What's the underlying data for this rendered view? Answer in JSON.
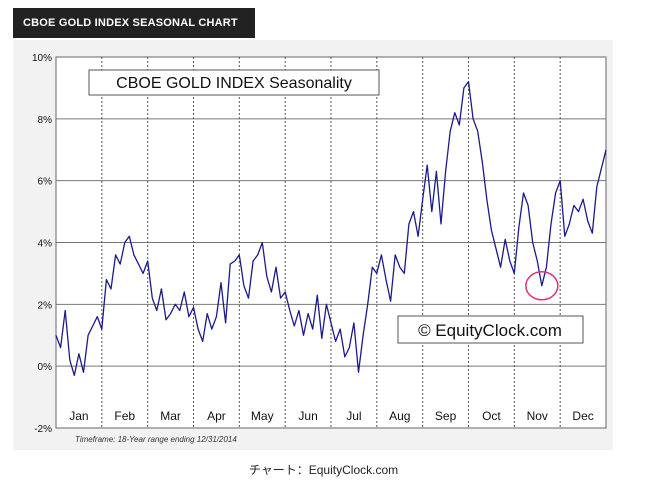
{
  "header": {
    "title": "CBOE GOLD INDEX SEASONAL CHART"
  },
  "caption": "チャート：EquityClock.com",
  "chart_data": {
    "type": "line",
    "title": "CBOE GOLD INDEX Seasonality",
    "watermark": "© EquityClock.com",
    "footnote": "Timeframe: 18-Year range ending 12/31/2014",
    "xlabel": "",
    "ylabel": "",
    "ylim": [
      -2,
      10
    ],
    "yticks": [
      "10%",
      "8%",
      "6%",
      "4%",
      "2%",
      "0%",
      "-2%"
    ],
    "ytick_values": [
      10,
      8,
      6,
      4,
      2,
      0,
      -2
    ],
    "months": [
      "Jan",
      "Feb",
      "Mar",
      "Apr",
      "May",
      "Jun",
      "Jul",
      "Aug",
      "Sep",
      "Oct",
      "Nov",
      "Dec"
    ],
    "grid": true,
    "line_color": "#1a1a8c",
    "highlight": {
      "month_position": 10.6,
      "value": 2.6,
      "color": "#e0307a"
    },
    "series": [
      {
        "x": [
          0.0,
          0.1,
          0.2,
          0.3,
          0.4,
          0.5,
          0.6,
          0.7,
          0.8,
          0.9,
          1.0,
          1.1,
          1.2,
          1.3,
          1.4,
          1.5,
          1.6,
          1.7,
          1.8,
          1.9,
          2.0,
          2.1,
          2.2,
          2.3,
          2.4,
          2.5,
          2.6,
          2.7,
          2.8,
          2.9,
          3.0,
          3.1,
          3.2,
          3.3,
          3.4,
          3.5,
          3.6,
          3.7,
          3.8,
          3.9,
          4.0,
          4.1,
          4.2,
          4.3,
          4.4,
          4.5,
          4.6,
          4.7,
          4.8,
          4.9,
          5.0,
          5.1,
          5.2,
          5.3,
          5.4,
          5.5,
          5.6,
          5.7,
          5.8,
          5.9,
          6.0,
          6.1,
          6.2,
          6.3,
          6.4,
          6.5,
          6.6,
          6.7,
          6.8,
          6.9,
          7.0,
          7.1,
          7.2,
          7.3,
          7.4,
          7.5,
          7.6,
          7.7,
          7.8,
          7.9,
          8.0,
          8.1,
          8.2,
          8.3,
          8.4,
          8.5,
          8.6,
          8.7,
          8.8,
          8.9,
          9.0,
          9.1,
          9.2,
          9.3,
          9.4,
          9.5,
          9.6,
          9.7,
          9.8,
          9.9,
          10.0,
          10.1,
          10.2,
          10.3,
          10.4,
          10.5,
          10.6,
          10.7,
          10.8,
          10.9,
          11.0,
          11.1,
          11.2,
          11.3,
          11.4,
          11.5,
          11.6,
          11.7,
          11.8,
          11.9,
          12.0
        ],
        "y": [
          1.0,
          0.6,
          1.8,
          0.2,
          -0.3,
          0.4,
          -0.2,
          1.0,
          1.3,
          1.6,
          1.2,
          2.8,
          2.5,
          3.6,
          3.3,
          4.0,
          4.2,
          3.6,
          3.3,
          3.0,
          3.4,
          2.2,
          1.8,
          2.5,
          1.5,
          1.7,
          2.0,
          1.8,
          2.4,
          1.6,
          1.9,
          1.2,
          0.8,
          1.7,
          1.2,
          1.6,
          2.7,
          1.4,
          3.3,
          3.4,
          3.6,
          2.6,
          2.2,
          3.4,
          3.6,
          4.0,
          2.9,
          2.4,
          3.2,
          2.2,
          2.4,
          1.8,
          1.3,
          1.8,
          1.0,
          1.7,
          1.2,
          2.3,
          0.9,
          2.0,
          1.4,
          0.8,
          1.2,
          0.3,
          0.6,
          1.4,
          -0.2,
          1.0,
          2.0,
          3.2,
          3.0,
          3.6,
          2.8,
          2.1,
          3.6,
          3.2,
          3.0,
          4.6,
          5.0,
          4.2,
          5.4,
          6.5,
          5.0,
          6.3,
          4.6,
          6.3,
          7.6,
          8.2,
          7.8,
          9.0,
          9.2,
          8.0,
          7.6,
          6.6,
          5.4,
          4.4,
          3.8,
          3.2,
          4.1,
          3.4,
          3.0,
          4.5,
          5.6,
          5.2,
          4.0,
          3.4,
          2.6,
          3.2,
          4.6,
          5.6,
          6.0,
          4.2,
          4.6,
          5.2,
          5.0,
          5.4,
          4.7,
          4.3,
          5.8,
          6.4,
          7.0
        ]
      }
    ]
  }
}
